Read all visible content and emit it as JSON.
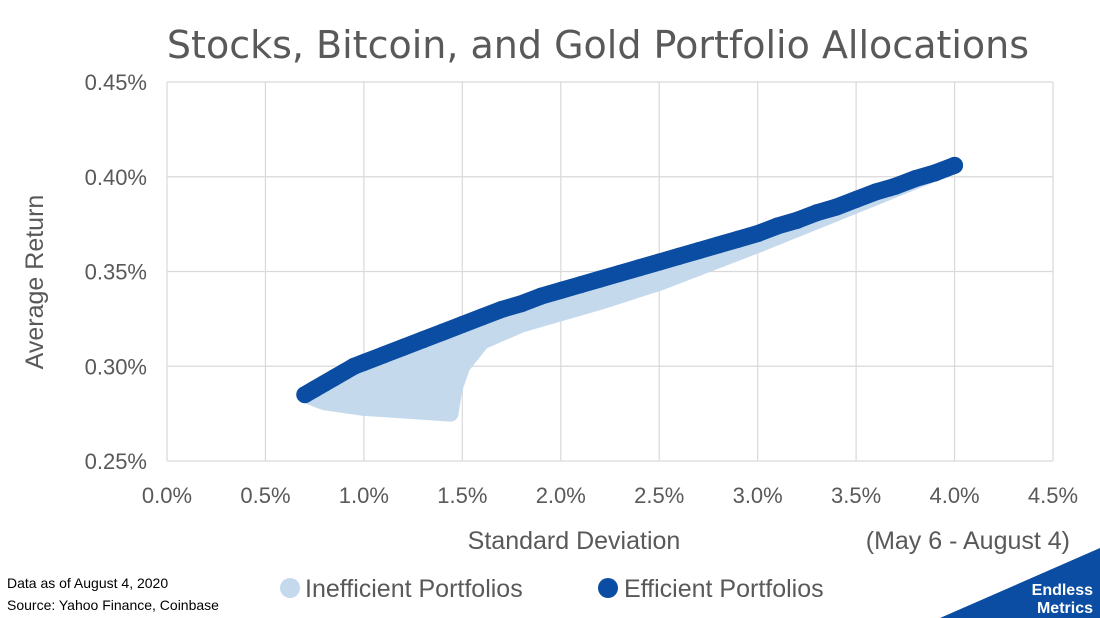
{
  "chart_data": {
    "type": "scatter",
    "title": "Stocks, Bitcoin, and Gold Portfolio Allocations",
    "xlabel": "Standard Deviation",
    "ylabel": "Average Return",
    "period_label": "(May 6 - August 4)",
    "xlim": [
      0.0,
      4.5
    ],
    "ylim": [
      0.25,
      0.45
    ],
    "x_ticks": [
      0.0,
      0.5,
      1.0,
      1.5,
      2.0,
      2.5,
      3.0,
      3.5,
      4.0,
      4.5
    ],
    "y_ticks": [
      0.25,
      0.3,
      0.35,
      0.4,
      0.45
    ],
    "x_tick_labels": [
      "0.0%",
      "0.5%",
      "1.0%",
      "1.5%",
      "2.0%",
      "2.5%",
      "3.0%",
      "3.5%",
      "4.0%",
      "4.5%"
    ],
    "y_tick_labels": [
      "0.25%",
      "0.30%",
      "0.35%",
      "0.40%",
      "0.45%"
    ],
    "grid": true,
    "legend_position": "bottom",
    "series": [
      {
        "name": "Inefficient Portfolios",
        "color": "#c5d9ed",
        "region_outline": [
          [
            0.7,
            0.285
          ],
          [
            0.8,
            0.291
          ],
          [
            0.9,
            0.297
          ],
          [
            1.0,
            0.302
          ],
          [
            1.1,
            0.306
          ],
          [
            1.2,
            0.31
          ],
          [
            1.4,
            0.318
          ],
          [
            1.6,
            0.326
          ],
          [
            1.8,
            0.333
          ],
          [
            2.0,
            0.34
          ],
          [
            2.2,
            0.346
          ],
          [
            2.5,
            0.355
          ],
          [
            3.0,
            0.37
          ],
          [
            3.5,
            0.388
          ],
          [
            4.0,
            0.406
          ],
          [
            3.5,
            0.385
          ],
          [
            3.0,
            0.364
          ],
          [
            2.5,
            0.344
          ],
          [
            2.2,
            0.334
          ],
          [
            2.0,
            0.328
          ],
          [
            1.8,
            0.322
          ],
          [
            1.6,
            0.313
          ],
          [
            1.5,
            0.3
          ],
          [
            1.46,
            0.288
          ],
          [
            1.44,
            0.275
          ],
          [
            1.3,
            0.276
          ],
          [
            1.0,
            0.278
          ],
          [
            0.8,
            0.281
          ],
          [
            0.7,
            0.285
          ]
        ]
      },
      {
        "name": "Efficient Portfolios",
        "color": "#0a4da2",
        "points": [
          [
            0.7,
            0.285
          ],
          [
            0.75,
            0.288
          ],
          [
            0.8,
            0.291
          ],
          [
            0.85,
            0.294
          ],
          [
            0.9,
            0.297
          ],
          [
            0.95,
            0.3
          ],
          [
            1.0,
            0.302
          ],
          [
            1.1,
            0.306
          ],
          [
            1.2,
            0.31
          ],
          [
            1.3,
            0.314
          ],
          [
            1.4,
            0.318
          ],
          [
            1.5,
            0.322
          ],
          [
            1.6,
            0.326
          ],
          [
            1.7,
            0.33
          ],
          [
            1.8,
            0.333
          ],
          [
            1.9,
            0.337
          ],
          [
            2.0,
            0.34
          ],
          [
            2.1,
            0.343
          ],
          [
            2.2,
            0.346
          ],
          [
            2.3,
            0.349
          ],
          [
            2.4,
            0.352
          ],
          [
            2.5,
            0.355
          ],
          [
            2.6,
            0.358
          ],
          [
            2.7,
            0.361
          ],
          [
            2.8,
            0.364
          ],
          [
            2.9,
            0.367
          ],
          [
            3.0,
            0.37
          ],
          [
            3.1,
            0.374
          ],
          [
            3.2,
            0.377
          ],
          [
            3.3,
            0.381
          ],
          [
            3.4,
            0.384
          ],
          [
            3.5,
            0.388
          ],
          [
            3.6,
            0.392
          ],
          [
            3.7,
            0.395
          ],
          [
            3.8,
            0.399
          ],
          [
            3.9,
            0.402
          ],
          [
            4.0,
            0.406
          ]
        ]
      }
    ]
  },
  "footnote": {
    "date_line": "Data as of August 4, 2020",
    "source_line": "Source: Yahoo Finance, Coinbase"
  },
  "logo": {
    "line1": "Endless",
    "line2": "Metrics",
    "color": "#0a4da2"
  }
}
